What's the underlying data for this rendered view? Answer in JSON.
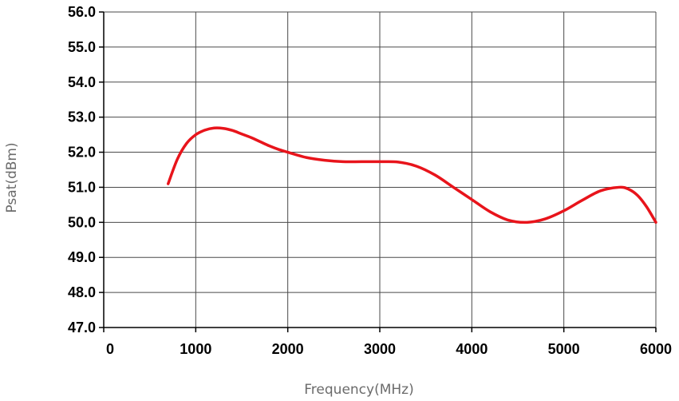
{
  "chart_data": {
    "type": "line",
    "title": "",
    "xlabel": "Frequency(MHz)",
    "ylabel": "Psat(dBm)",
    "xlim": [
      0,
      6000
    ],
    "ylim": [
      47.0,
      56.0
    ],
    "x_ticks": [
      0,
      1000,
      2000,
      3000,
      4000,
      5000,
      6000
    ],
    "x_tick_labels": [
      "0",
      "1000",
      "2000",
      "3000",
      "4000",
      "5000",
      "6000"
    ],
    "y_ticks": [
      47,
      48,
      49,
      50,
      51,
      52,
      53,
      54,
      55,
      56
    ],
    "y_tick_labels": [
      "47.0",
      "48.0",
      "49.0",
      "50.0",
      "51.0",
      "52.0",
      "53.0",
      "54.0",
      "55.0",
      "56.0"
    ],
    "grid": true,
    "legend": "none",
    "series": [
      {
        "color": "#e8141b",
        "x": [
          700,
          800,
          900,
          1000,
          1100,
          1200,
          1300,
          1400,
          1500,
          1600,
          1700,
          1800,
          1900,
          2000,
          2200,
          2400,
          2600,
          2800,
          3000,
          3200,
          3400,
          3600,
          3800,
          4000,
          4200,
          4400,
          4600,
          4800,
          5000,
          5200,
          5400,
          5600,
          5700,
          5800,
          5900,
          6000
        ],
        "y": [
          51.1,
          51.8,
          52.25,
          52.5,
          52.63,
          52.69,
          52.68,
          52.62,
          52.52,
          52.42,
          52.3,
          52.18,
          52.08,
          52.0,
          51.85,
          51.77,
          51.73,
          51.73,
          51.73,
          51.72,
          51.6,
          51.35,
          51.0,
          50.65,
          50.3,
          50.06,
          50.0,
          50.1,
          50.33,
          50.63,
          50.9,
          51.0,
          50.95,
          50.77,
          50.44,
          50.0
        ]
      }
    ]
  }
}
